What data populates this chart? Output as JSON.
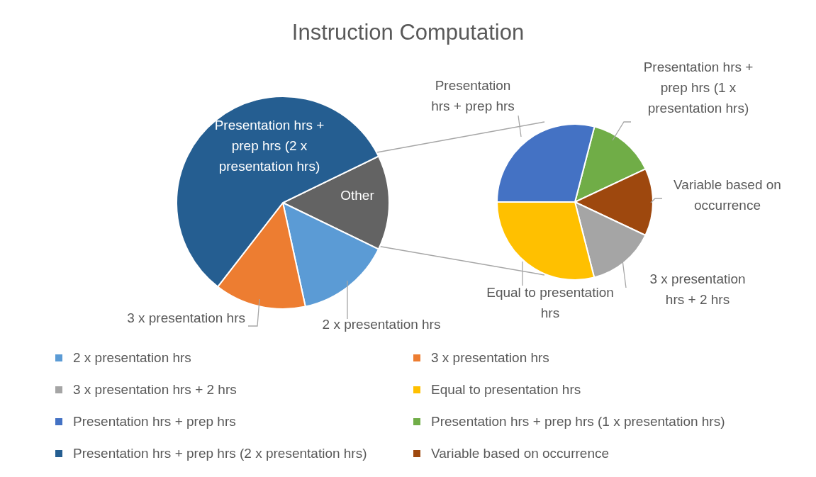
{
  "chart_data": [
    {
      "type": "pie",
      "title": "Instruction Computation",
      "categories": [
        null,
        "2 x presentation hrs",
        "3 x presentation hrs",
        "Presentation hrs + prep hrs (2 x presentation hrs)"
      ],
      "values": [
        14.4,
        14.4,
        13.9,
        57.3
      ],
      "colors": [
        "#636363",
        "#5b9bd5",
        "#ed7d31",
        "#255e91"
      ],
      "annotations": [
        "Other"
      ],
      "legend": "bottom"
    },
    {
      "type": "pie",
      "categories": [
        "Presentation hrs + prep hrs (1 x presentation hrs)",
        "Variable based on occurrence",
        "3 x presentation hrs + 2 hrs",
        "Equal to presentation hrs",
        "Presentation hrs + prep hrs"
      ],
      "values": [
        14,
        14,
        14,
        29,
        29
      ],
      "colors": [
        "#70ad47",
        "#9e480e",
        "#a5a5a5",
        "#ffc000",
        "#4472c4"
      ],
      "legend": "bottom"
    }
  ]
}
